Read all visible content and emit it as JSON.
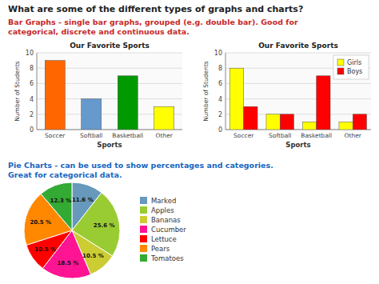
{
  "chart_data": [
    {
      "type": "bar",
      "title": "Our Favorite Sports",
      "annotations": [
        "What are some of the different types of graphs and charts?",
        "Bar Graphs - single bar graphs, grouped (e.g. double bar). Good for",
        "categorical, discrete and continuous data."
      ],
      "x_label": "Sports",
      "y_label": "Number of Students",
      "categories": [
        "Soccer",
        "Softball",
        "Basketball",
        "Other"
      ],
      "values": [
        9,
        4,
        7,
        3
      ],
      "colors": [
        "#FF6600",
        "#6699CC",
        "#009900",
        "#FFFF00"
      ],
      "ylim": [
        0,
        10
      ],
      "yticks": [
        0,
        2,
        4,
        6,
        8,
        10
      ],
      "grid": true
    },
    {
      "type": "bar",
      "title": "Our Favorite Sports",
      "x_label": "Sports",
      "y_label": "Number of Students",
      "categories": [
        "Soccer",
        "Softball",
        "Basketball",
        "Other"
      ],
      "series": [
        {
          "name": "Girls",
          "color": "#FFFF00",
          "values": [
            8,
            2,
            1,
            1
          ]
        },
        {
          "name": "Boys",
          "color": "#FF0000",
          "values": [
            3,
            2,
            7,
            2
          ]
        }
      ],
      "ylim": [
        0,
        10
      ],
      "yticks": [
        0,
        2,
        4,
        6,
        8,
        10
      ],
      "grid": true,
      "legend": "upper right"
    },
    {
      "type": "pie",
      "annotations": [
        "Pie Charts - can be used to show percentages and categories.",
        "Great for categorical data."
      ],
      "categories": [
        "Marked",
        "Apples",
        "Bananas",
        "Cucumber",
        "Lettuce",
        "Pears",
        "Tomatoes"
      ],
      "values": [
        11.6,
        25.6,
        10.5,
        18.5,
        10.5,
        20.5,
        12.3
      ],
      "value_labels": [
        "11.6 %",
        "25.6 %",
        "10.5 %",
        "18.5 %",
        "10.5 %",
        "20.5 %",
        "12.3 %"
      ],
      "colors": [
        "#6699BB",
        "#99CC33",
        "#CCCC33",
        "#FF1493",
        "#FF0000",
        "#FF8800",
        "#33AA33"
      ],
      "data_labels": true,
      "legend": "right"
    }
  ]
}
